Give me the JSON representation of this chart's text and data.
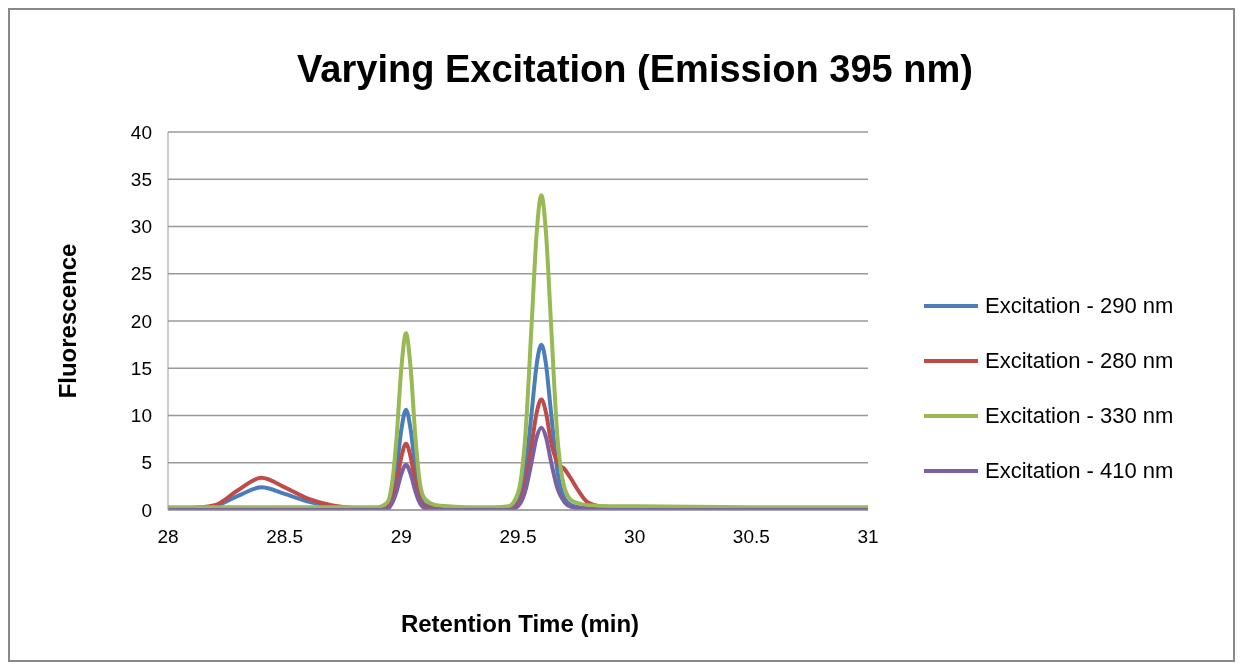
{
  "chart_data": {
    "type": "line",
    "title": "Varying Excitation (Emission 395 nm)",
    "xlabel": "Retention Time (min)",
    "ylabel": "Fluorescence",
    "x": [
      28,
      28.1,
      28.2,
      28.3,
      28.4,
      28.5,
      28.6,
      28.7,
      28.8,
      28.9,
      28.94,
      28.96,
      28.98,
      29.0,
      29.02,
      29.04,
      29.06,
      29.08,
      29.1,
      29.15,
      29.2,
      29.3,
      29.4,
      29.46,
      29.5,
      29.53,
      29.56,
      29.58,
      29.6,
      29.62,
      29.64,
      29.67,
      29.7,
      29.73,
      29.76,
      29.8,
      29.9,
      30,
      30.5,
      31
    ],
    "series": [
      {
        "name": "Excitation - 290 nm",
        "color": "#4a7ebb",
        "values": [
          0.1,
          0.1,
          0.4,
          1.5,
          2.4,
          1.7,
          0.9,
          0.4,
          0.2,
          0.1,
          0.4,
          1.5,
          4.4,
          8.5,
          10.6,
          8.5,
          4.4,
          1.5,
          0.6,
          0.2,
          0.1,
          0.1,
          0.1,
          0.1,
          0.9,
          3.9,
          10.7,
          15.4,
          17.5,
          15.4,
          10.7,
          3.9,
          1.2,
          0.5,
          0.3,
          0.2,
          0.1,
          null,
          null,
          null
        ]
      },
      {
        "name": "Excitation - 280 nm",
        "color": "#be4b48",
        "values": [
          0.1,
          0.2,
          0.5,
          2.1,
          3.4,
          2.4,
          1.2,
          0.5,
          0.2,
          0.1,
          0.3,
          1.0,
          2.9,
          5.6,
          7.0,
          5.6,
          2.9,
          1.0,
          0.4,
          0.2,
          0.1,
          0.1,
          0.1,
          0.1,
          0.6,
          2.6,
          7.2,
          10.3,
          11.7,
          10.3,
          7.4,
          5.0,
          4.3,
          3.2,
          2.0,
          0.8,
          0.2,
          0.1,
          null,
          null
        ]
      },
      {
        "name": "Excitation - 330 nm",
        "color": "#98b954",
        "values": [
          0.3,
          0.3,
          0.3,
          0.3,
          0.3,
          0.3,
          0.3,
          0.3,
          0.3,
          0.3,
          0.8,
          2.8,
          7.8,
          15.0,
          18.7,
          15.0,
          7.8,
          2.8,
          1.2,
          0.5,
          0.4,
          0.3,
          0.3,
          0.4,
          1.8,
          7.4,
          20.4,
          29.3,
          33.3,
          29.3,
          20.4,
          7.4,
          2.3,
          1.0,
          0.7,
          0.5,
          0.4,
          0.4,
          0.3,
          0.3
        ]
      },
      {
        "name": "Excitation - 410 nm",
        "color": "#7d60a0",
        "values": [
          0,
          0,
          0,
          0,
          0,
          0,
          0,
          0,
          0,
          0,
          0.1,
          0.7,
          2.0,
          3.8,
          4.8,
          3.8,
          2.0,
          0.7,
          0.2,
          0.1,
          0,
          0,
          0,
          0,
          0.4,
          1.9,
          5.3,
          7.7,
          8.7,
          7.7,
          5.3,
          2.2,
          0.8,
          0.3,
          0.2,
          0.1,
          0,
          0,
          0,
          0
        ]
      }
    ],
    "xlim": [
      28,
      31
    ],
    "xticks": [
      28,
      28.5,
      29,
      29.5,
      30,
      30.5,
      31
    ],
    "ylim": [
      0,
      40
    ],
    "yticks": [
      0,
      5,
      10,
      15,
      20,
      25,
      30,
      35,
      40
    ],
    "grid": "y",
    "legend": "right",
    "marker": "none",
    "line_style": "solid"
  }
}
